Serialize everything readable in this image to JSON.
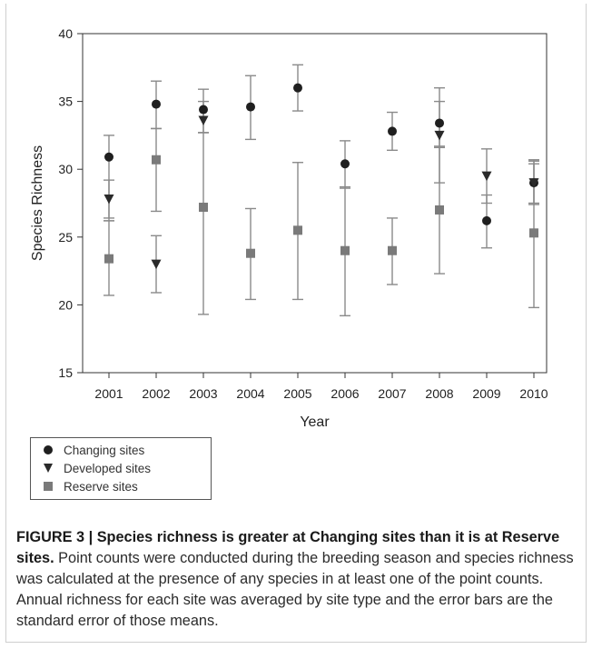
{
  "chart_data": {
    "type": "scatter",
    "title": "",
    "xlabel": "Year",
    "ylabel": "Species Richness",
    "ylim": [
      15,
      40
    ],
    "yticks": [
      15,
      20,
      25,
      30,
      35,
      40
    ],
    "categories": [
      "2001",
      "2002",
      "2003",
      "2004",
      "2005",
      "2006",
      "2007",
      "2008",
      "2009",
      "2010"
    ],
    "grid": false,
    "legend_position": "below-left",
    "series": [
      {
        "name": "Changing sites",
        "marker": "circle",
        "color": "#1f1f1f",
        "values": [
          30.9,
          34.8,
          34.4,
          34.6,
          36.0,
          30.4,
          32.8,
          33.4,
          26.2,
          29.0
        ],
        "err_low": [
          26.2,
          33.0,
          32.7,
          32.2,
          34.3,
          28.6,
          31.4,
          31.6,
          24.2,
          27.4
        ],
        "err_high": [
          32.5,
          36.5,
          35.9,
          36.9,
          37.7,
          32.1,
          34.2,
          35.0,
          28.1,
          30.6
        ]
      },
      {
        "name": "Developed sites",
        "marker": "triangle-down",
        "color": "#2a2a2a",
        "values": [
          27.8,
          23.0,
          33.6,
          null,
          null,
          null,
          null,
          32.5,
          29.5,
          29.0
        ],
        "err_low": [
          26.4,
          20.9,
          32.7,
          null,
          null,
          null,
          null,
          29.0,
          27.5,
          27.5
        ],
        "err_high": [
          29.2,
          25.1,
          35.0,
          null,
          null,
          null,
          null,
          36.0,
          31.5,
          30.4
        ]
      },
      {
        "name": "Reserve sites",
        "marker": "square",
        "color": "#7a7a7a",
        "values": [
          23.4,
          30.7,
          27.2,
          23.8,
          25.5,
          24.0,
          24.0,
          27.0,
          null,
          25.3
        ],
        "err_low": [
          20.7,
          26.9,
          19.3,
          20.4,
          20.4,
          19.2,
          21.5,
          22.3,
          null,
          19.8
        ],
        "err_high": [
          26.2,
          33.0,
          32.7,
          27.1,
          30.5,
          28.7,
          26.4,
          31.7,
          null,
          30.7
        ]
      }
    ]
  },
  "caption": {
    "bold": "FIGURE 3 | Species richness is greater at Changing sites than it is at Reserve sites.",
    "text": " Point counts were conducted during the breeding season and species richness was calculated at the presence of any species in at least one of the point counts. Annual richness for each site was averaged by site type and the error bars are the standard error of those means."
  }
}
